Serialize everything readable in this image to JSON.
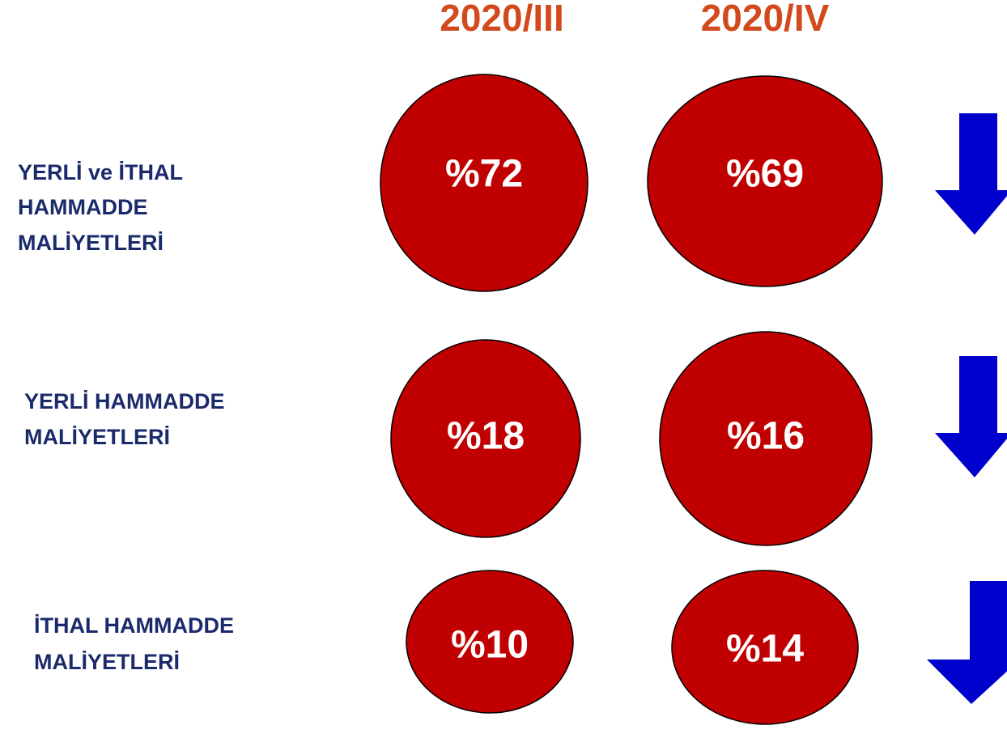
{
  "columns": [
    "2020/III",
    "2020/IV"
  ],
  "rows": [
    {
      "label": [
        "YERLİ ve İTHAL",
        "HAMMADDE",
        "MALİYETLERİ"
      ],
      "values": [
        "%72",
        "%69"
      ]
    },
    {
      "label": [
        "YERLİ HAMMADDE",
        "MALİYETLERİ"
      ],
      "values": [
        "%18",
        "%16"
      ]
    },
    {
      "label": [
        "İTHAL HAMMADDE",
        "MALİYETLERİ"
      ],
      "values": [
        "%10",
        "%14"
      ]
    }
  ]
}
